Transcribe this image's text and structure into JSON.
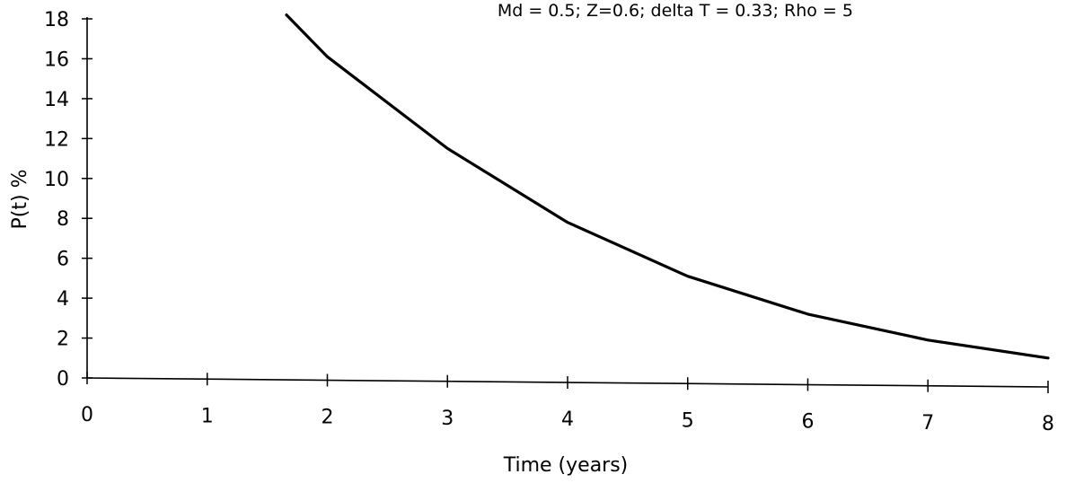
{
  "chart_data": {
    "type": "line",
    "title": "",
    "subtitle": "Md = 0.5; Z=0.6; delta T = 0.33; Rho = 5",
    "xlabel": "Time (years)",
    "ylabel": "P(t) %",
    "xlim": [
      0,
      8
    ],
    "ylim": [
      0,
      18
    ],
    "x_ticks": [
      "0",
      "1",
      "2",
      "3",
      "4",
      "5",
      "6",
      "7",
      "8"
    ],
    "y_ticks": [
      "0",
      "2",
      "4",
      "6",
      "8",
      "10",
      "12",
      "14",
      "16",
      "18"
    ],
    "grid": false,
    "legend": "none",
    "series": [
      {
        "x": [
          1.66,
          2,
          3,
          4,
          5,
          6,
          7,
          8
        ],
        "y": [
          18.2,
          16.1,
          11.5,
          7.8,
          5.1,
          3.2,
          1.9,
          1.0
        ]
      }
    ],
    "colors": {
      "line": "#000000",
      "axis": "#000000"
    }
  }
}
